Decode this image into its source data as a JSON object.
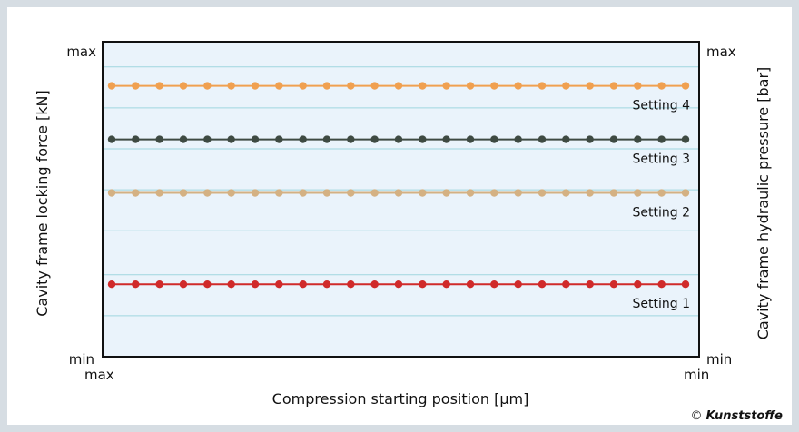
{
  "chart_data": {
    "type": "line",
    "title": "",
    "xlabel": "Compression starting position [μm]",
    "ylabel": "Cavity frame locking force  [kN]",
    "ylabel_right": "Cavity frame hydraulic pressure  [bar]",
    "x_tick_labels": {
      "left": "max",
      "right": "min"
    },
    "y_tick_labels": {
      "top": "max",
      "bottom": "min"
    },
    "y2_tick_labels": {
      "top": "max",
      "bottom": "min"
    },
    "xlim": [
      0,
      1
    ],
    "ylim": [
      0,
      1
    ],
    "grid": "horizontal",
    "points_per_series": 25,
    "series": [
      {
        "name": "Setting 4",
        "level": 0.86,
        "color": "#f0a050"
      },
      {
        "name": "Setting 3",
        "level": 0.69,
        "color": "#3e4a42"
      },
      {
        "name": "Setting 2",
        "level": 0.52,
        "color": "#d4b183"
      },
      {
        "name": "Setting 1",
        "level": 0.23,
        "color": "#d02a2a"
      }
    ],
    "gridlines": [
      0.13,
      0.26,
      0.4,
      0.53,
      0.66,
      0.79,
      0.92
    ]
  },
  "credit": {
    "symbol": "©",
    "brand": "Kunststoffe"
  }
}
